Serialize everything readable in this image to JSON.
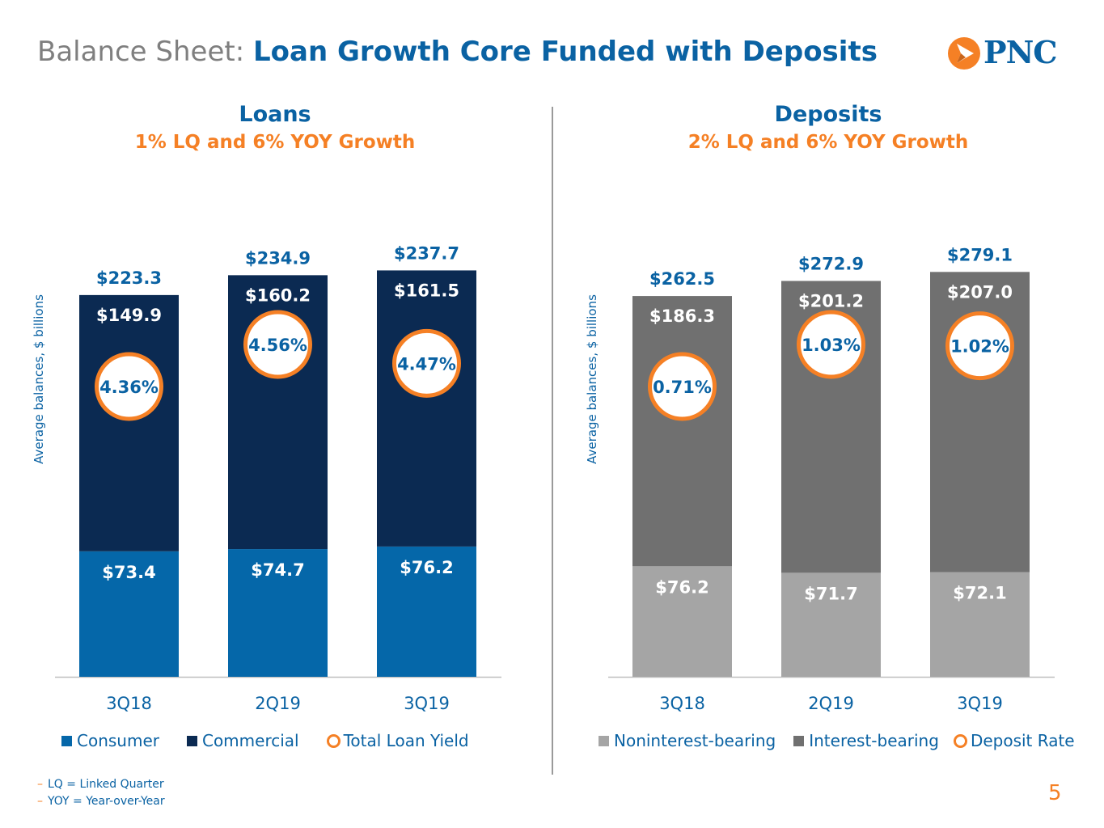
{
  "title": {
    "prefix": "Balance Sheet:",
    "main": "Loan Growth Core Funded with Deposits"
  },
  "logo": {
    "text": "PNC",
    "icon": "pnc-triangle-logo-icon"
  },
  "colors": {
    "consumer": "#0567a9",
    "commercial": "#0b2a52",
    "noninterest": "#a5a5a5",
    "interest": "#707070",
    "ring": "#f58025",
    "blue_text": "#0a62a3"
  },
  "chart_data": [
    {
      "type": "bar",
      "stacked": true,
      "title": "Loans",
      "subtitle": "1% LQ and 6% YOY Growth",
      "ylabel": "Average balances, $ billions",
      "categories": [
        "3Q18",
        "2Q19",
        "3Q19"
      ],
      "series": [
        {
          "name": "Consumer",
          "values": [
            73.4,
            74.7,
            76.2
          ],
          "labels": [
            "$73.4",
            "$74.7",
            "$76.2"
          ]
        },
        {
          "name": "Commercial",
          "values": [
            149.9,
            160.2,
            161.5
          ],
          "labels": [
            "$149.9",
            "$160.2",
            "$161.5"
          ]
        }
      ],
      "totals": [
        223.3,
        234.9,
        237.7
      ],
      "total_labels": [
        "$223.3",
        "$234.9",
        "$237.7"
      ],
      "rate_name": "Total Loan Yield",
      "rates": [
        4.36,
        4.56,
        4.47
      ],
      "rate_labels": [
        "4.36%",
        "4.56%",
        "4.47%"
      ],
      "ylim": [
        0,
        280
      ]
    },
    {
      "type": "bar",
      "stacked": true,
      "title": "Deposits",
      "subtitle": "2% LQ and 6% YOY Growth",
      "ylabel": "Average balances, $ billions",
      "categories": [
        "3Q18",
        "2Q19",
        "3Q19"
      ],
      "series": [
        {
          "name": "Noninterest-bearing",
          "values": [
            76.2,
            71.7,
            72.1
          ],
          "labels": [
            "$76.2",
            "$71.7",
            "$72.1"
          ]
        },
        {
          "name": "Interest-bearing",
          "values": [
            186.3,
            201.2,
            207.0
          ],
          "labels": [
            "$186.3",
            "$201.2",
            "$207.0"
          ]
        }
      ],
      "totals": [
        262.5,
        272.9,
        279.1
      ],
      "total_labels": [
        "$262.5",
        "$272.9",
        "$279.1"
      ],
      "rate_name": "Deposit Rate",
      "rates": [
        0.71,
        1.03,
        1.02
      ],
      "rate_labels": [
        "0.71%",
        "1.03%",
        "1.02%"
      ],
      "ylim": [
        0,
        330
      ]
    }
  ],
  "footnotes": [
    "LQ = Linked Quarter",
    "YOY = Year-over-Year"
  ],
  "page_number": "5"
}
